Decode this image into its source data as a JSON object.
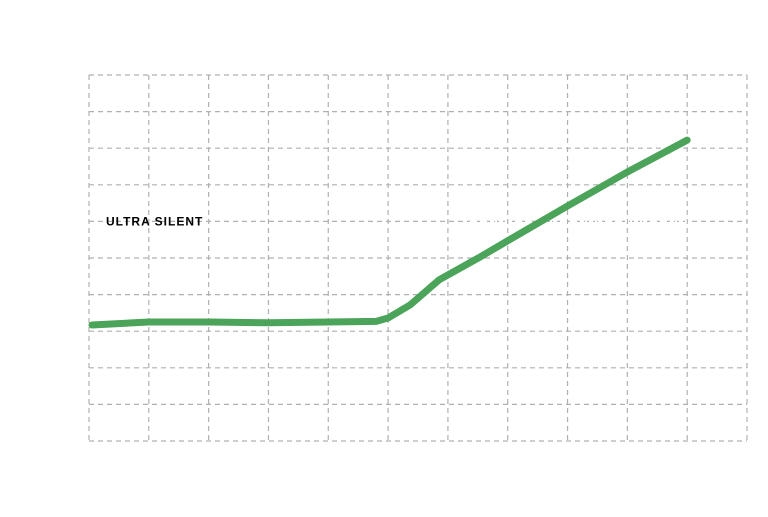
{
  "chart_data": {
    "type": "line",
    "x": [
      0.05,
      1,
      2,
      3,
      4,
      4.8,
      5,
      5.37,
      5.85,
      6.54,
      7.03,
      8,
      9,
      10
    ],
    "series": [
      {
        "color": "#4ca35a",
        "values": [
          3.17,
          3.25,
          3.25,
          3.23,
          3.25,
          3.27,
          3.36,
          3.72,
          4.4,
          5.03,
          5.5,
          6.42,
          7.35,
          8.22
        ]
      }
    ],
    "xlim": [
      0,
      11
    ],
    "ylim": [
      0,
      10
    ],
    "xticks": [
      0,
      1,
      2,
      3,
      4,
      5,
      6,
      7,
      8,
      9,
      10,
      11
    ],
    "yticks": [
      0,
      1,
      2,
      3,
      4,
      5,
      6,
      7,
      8,
      9,
      10
    ],
    "grid": true,
    "reference_lines": [
      {
        "value": 6,
        "label": "ULTRA SILENT"
      }
    ]
  }
}
